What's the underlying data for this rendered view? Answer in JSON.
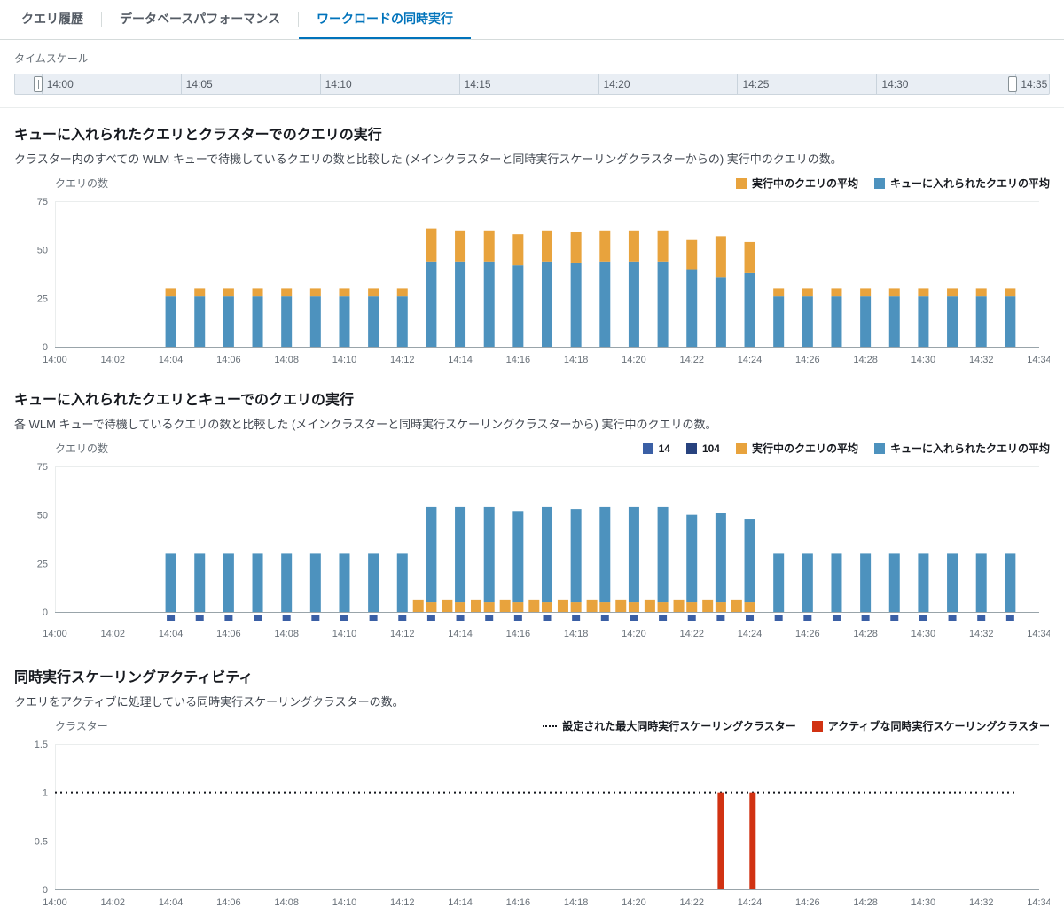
{
  "tabs": {
    "items": [
      {
        "label": "クエリ履歴"
      },
      {
        "label": "データベースパフォーマンス"
      },
      {
        "label": "ワークロードの同時実行"
      }
    ],
    "active_index": 2
  },
  "timescale": {
    "label": "タイムスケール",
    "ticks": [
      "14:00",
      "14:05",
      "14:10",
      "14:15",
      "14:20",
      "14:25",
      "14:30",
      "14:35"
    ]
  },
  "colors": {
    "queued": "#4d92be",
    "running": "#e8a33d",
    "queue14": "#3a5fa5",
    "queue104": "#28427e",
    "active_scaling": "#d13212",
    "max_line": "#16191f"
  },
  "chart_data": [
    {
      "type": "stacked-bar",
      "title": "キューに入れられたクエリとクラスターでのクエリの実行",
      "description": "クラスター内のすべての WLM キューで待機しているクエリの数と比較した (メインクラスターと同時実行スケーリングクラスターからの) 実行中のクエリの数。",
      "y_label": "クエリの数",
      "y_max": 75,
      "y_ticks": [
        0,
        25,
        50,
        75
      ],
      "x_tick_labels": [
        "14:00",
        "14:02",
        "14:04",
        "14:06",
        "14:08",
        "14:10",
        "14:12",
        "14:14",
        "14:16",
        "14:18",
        "14:20",
        "14:22",
        "14:24",
        "14:26",
        "14:28",
        "14:30",
        "14:32",
        "14:34"
      ],
      "legend": [
        {
          "label": "実行中のクエリの平均",
          "color_key": "running"
        },
        {
          "label": "キューに入れられたクエリの平均",
          "color_key": "queued"
        }
      ],
      "stack_order": [
        "queued",
        "running"
      ],
      "bars": [
        {
          "m": 4,
          "queued": 26,
          "running": 4
        },
        {
          "m": 5,
          "queued": 26,
          "running": 4
        },
        {
          "m": 6,
          "queued": 26,
          "running": 4
        },
        {
          "m": 7,
          "queued": 26,
          "running": 4
        },
        {
          "m": 8,
          "queued": 26,
          "running": 4
        },
        {
          "m": 9,
          "queued": 26,
          "running": 4
        },
        {
          "m": 10,
          "queued": 26,
          "running": 4
        },
        {
          "m": 11,
          "queued": 26,
          "running": 4
        },
        {
          "m": 12,
          "queued": 26,
          "running": 4
        },
        {
          "m": 13,
          "queued": 44,
          "running": 17
        },
        {
          "m": 14,
          "queued": 44,
          "running": 16
        },
        {
          "m": 15,
          "queued": 44,
          "running": 16
        },
        {
          "m": 16,
          "queued": 42,
          "running": 16
        },
        {
          "m": 17,
          "queued": 44,
          "running": 16
        },
        {
          "m": 18,
          "queued": 43,
          "running": 16
        },
        {
          "m": 19,
          "queued": 44,
          "running": 16
        },
        {
          "m": 20,
          "queued": 44,
          "running": 16
        },
        {
          "m": 21,
          "queued": 44,
          "running": 16
        },
        {
          "m": 22,
          "queued": 40,
          "running": 15
        },
        {
          "m": 23,
          "queued": 36,
          "running": 21
        },
        {
          "m": 24,
          "queued": 38,
          "running": 16
        },
        {
          "m": 25,
          "queued": 26,
          "running": 4
        },
        {
          "m": 26,
          "queued": 26,
          "running": 4
        },
        {
          "m": 27,
          "queued": 26,
          "running": 4
        },
        {
          "m": 28,
          "queued": 26,
          "running": 4
        },
        {
          "m": 29,
          "queued": 26,
          "running": 4
        },
        {
          "m": 30,
          "queued": 26,
          "running": 4
        },
        {
          "m": 31,
          "queued": 26,
          "running": 4
        },
        {
          "m": 32,
          "queued": 26,
          "running": 4
        },
        {
          "m": 33,
          "queued": 26,
          "running": 4
        }
      ]
    },
    {
      "type": "stacked-bar",
      "title": "キューに入れられたクエリとキューでのクエリの実行",
      "description": "各 WLM キューで待機しているクエリの数と比較した (メインクラスターと同時実行スケーリングクラスターから) 実行中のクエリの数。",
      "y_label": "クエリの数",
      "y_max": 75,
      "y_ticks": [
        0,
        25,
        50,
        75
      ],
      "x_tick_labels": [
        "14:00",
        "14:02",
        "14:04",
        "14:06",
        "14:08",
        "14:10",
        "14:12",
        "14:14",
        "14:16",
        "14:18",
        "14:20",
        "14:22",
        "14:24",
        "14:26",
        "14:28",
        "14:30",
        "14:32",
        "14:34"
      ],
      "legend": [
        {
          "label": "14",
          "color_key": "queue14"
        },
        {
          "label": "104",
          "color_key": "queue104"
        },
        {
          "label": "実行中のクエリの平均",
          "color_key": "running"
        },
        {
          "label": "キューに入れられたクエリの平均",
          "color_key": "queued"
        }
      ],
      "stack_order": [
        "running",
        "queued"
      ],
      "bars": [
        {
          "m": 4,
          "queued": 30,
          "running": 0
        },
        {
          "m": 5,
          "queued": 30,
          "running": 0
        },
        {
          "m": 6,
          "queued": 30,
          "running": 0
        },
        {
          "m": 7,
          "queued": 30,
          "running": 0
        },
        {
          "m": 8,
          "queued": 30,
          "running": 0
        },
        {
          "m": 9,
          "queued": 30,
          "running": 0
        },
        {
          "m": 10,
          "queued": 30,
          "running": 0
        },
        {
          "m": 11,
          "queued": 30,
          "running": 0
        },
        {
          "m": 12,
          "queued": 30,
          "running": 0
        },
        {
          "m": 13,
          "queued": 49,
          "running": 5
        },
        {
          "m": 14,
          "queued": 49,
          "running": 5
        },
        {
          "m": 15,
          "queued": 49,
          "running": 5
        },
        {
          "m": 16,
          "queued": 47,
          "running": 5
        },
        {
          "m": 17,
          "queued": 49,
          "running": 5
        },
        {
          "m": 18,
          "queued": 48,
          "running": 5
        },
        {
          "m": 19,
          "queued": 49,
          "running": 5
        },
        {
          "m": 20,
          "queued": 49,
          "running": 5
        },
        {
          "m": 21,
          "queued": 49,
          "running": 5
        },
        {
          "m": 22,
          "queued": 45,
          "running": 5
        },
        {
          "m": 23,
          "queued": 46,
          "running": 5
        },
        {
          "m": 24,
          "queued": 43,
          "running": 5
        },
        {
          "m": 25,
          "queued": 30,
          "running": 0
        },
        {
          "m": 26,
          "queued": 30,
          "running": 0
        },
        {
          "m": 27,
          "queued": 30,
          "running": 0
        },
        {
          "m": 28,
          "queued": 30,
          "running": 0
        },
        {
          "m": 29,
          "queued": 30,
          "running": 0
        },
        {
          "m": 30,
          "queued": 30,
          "running": 0
        },
        {
          "m": 31,
          "queued": 30,
          "running": 0
        },
        {
          "m": 32,
          "queued": 30,
          "running": 0
        },
        {
          "m": 33,
          "queued": 30,
          "running": 0
        }
      ],
      "extra_running_bars": [
        {
          "m": 12.55,
          "value": 6
        },
        {
          "m": 13.55,
          "value": 6
        },
        {
          "m": 14.55,
          "value": 6
        },
        {
          "m": 15.55,
          "value": 6
        },
        {
          "m": 16.55,
          "value": 6
        },
        {
          "m": 17.55,
          "value": 6
        },
        {
          "m": 18.55,
          "value": 6
        },
        {
          "m": 19.55,
          "value": 6
        },
        {
          "m": 20.55,
          "value": 6
        },
        {
          "m": 21.55,
          "value": 6
        },
        {
          "m": 22.55,
          "value": 6
        },
        {
          "m": 23.55,
          "value": 6
        }
      ],
      "queue_markers": {
        "color_key": "queue14",
        "minutes": [
          4,
          5,
          6,
          7,
          8,
          9,
          10,
          11,
          12,
          13,
          14,
          15,
          16,
          17,
          18,
          19,
          20,
          21,
          22,
          23,
          24,
          25,
          26,
          27,
          28,
          29,
          30,
          31,
          32,
          33
        ]
      }
    },
    {
      "type": "activity",
      "title": "同時実行スケーリングアクティビティ",
      "description": "クエリをアクティブに処理している同時実行スケーリングクラスターの数。",
      "y_label": "クラスター",
      "y_max": 1.5,
      "y_ticks": [
        0,
        0.5,
        1,
        1.5
      ],
      "x_tick_labels": [
        "14:00",
        "14:02",
        "14:04",
        "14:06",
        "14:08",
        "14:10",
        "14:12",
        "14:14",
        "14:16",
        "14:18",
        "14:20",
        "14:22",
        "14:24",
        "14:26",
        "14:28",
        "14:30",
        "14:32",
        "14:34"
      ],
      "legend": [
        {
          "label": "設定された最大同時実行スケーリングクラスター",
          "style": "dotted"
        },
        {
          "label": "アクティブな同時実行スケーリングクラスター",
          "color_key": "active_scaling"
        }
      ],
      "max_line": {
        "value": 1,
        "from_m": 0,
        "to_m": 33.2
      },
      "bars": [
        {
          "m": 23,
          "value": 1
        },
        {
          "m": 24.1,
          "value": 1
        }
      ]
    }
  ]
}
